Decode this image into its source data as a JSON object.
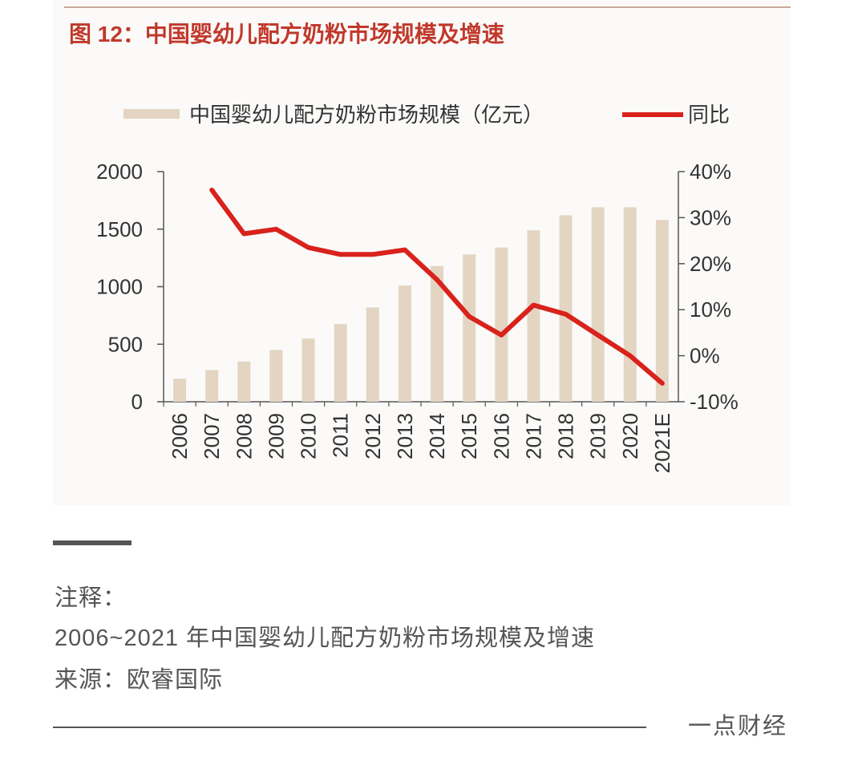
{
  "figure": {
    "title": "图 12：中国婴幼儿配方奶粉市场规模及增速",
    "title_color": "#c0392b",
    "bar_color": "#e3d5c2",
    "line_color": "#d9221c"
  },
  "chart_data": {
    "type": "bar",
    "title": "图 12：中国婴幼儿配方奶粉市场规模及增速",
    "categories": [
      "2006",
      "2007",
      "2008",
      "2009",
      "2010",
      "2011",
      "2012",
      "2013",
      "2014",
      "2015",
      "2016",
      "2017",
      "2018",
      "2019",
      "2020",
      "2021E"
    ],
    "series": [
      {
        "name": "中国婴幼儿配方奶粉市场规模（亿元）",
        "type": "bar",
        "axis": "left",
        "values": [
          200,
          275,
          350,
          450,
          550,
          675,
          820,
          1010,
          1180,
          1280,
          1340,
          1490,
          1620,
          1690,
          1690,
          1580
        ]
      },
      {
        "name": "同比",
        "type": "line",
        "axis": "right",
        "unit": "%",
        "values": [
          null,
          36,
          26.5,
          27.5,
          23.5,
          22,
          22,
          23,
          16.5,
          8.5,
          4.5,
          11,
          9,
          4.5,
          0,
          -6
        ]
      }
    ],
    "y_left": {
      "min": 0,
      "max": 2000,
      "ticks": [
        "2000",
        "1500",
        "1000",
        "500",
        "0"
      ]
    },
    "y_right": {
      "min": -10,
      "max": 40,
      "ticks": [
        "40%",
        "30%",
        "20%",
        "10%",
        "0%",
        "-10%"
      ]
    },
    "grid": false,
    "legend": "top",
    "legend_labels": {
      "bar": "中国婴幼儿配方奶粉市场规模（亿元）",
      "line": "同比"
    }
  },
  "caption": {
    "line1": "注释：",
    "line2": "2006~2021 年中国婴幼儿配方奶粉市场规模及增速",
    "line3": "来源：欧睿国际"
  },
  "brand": "一点财经"
}
